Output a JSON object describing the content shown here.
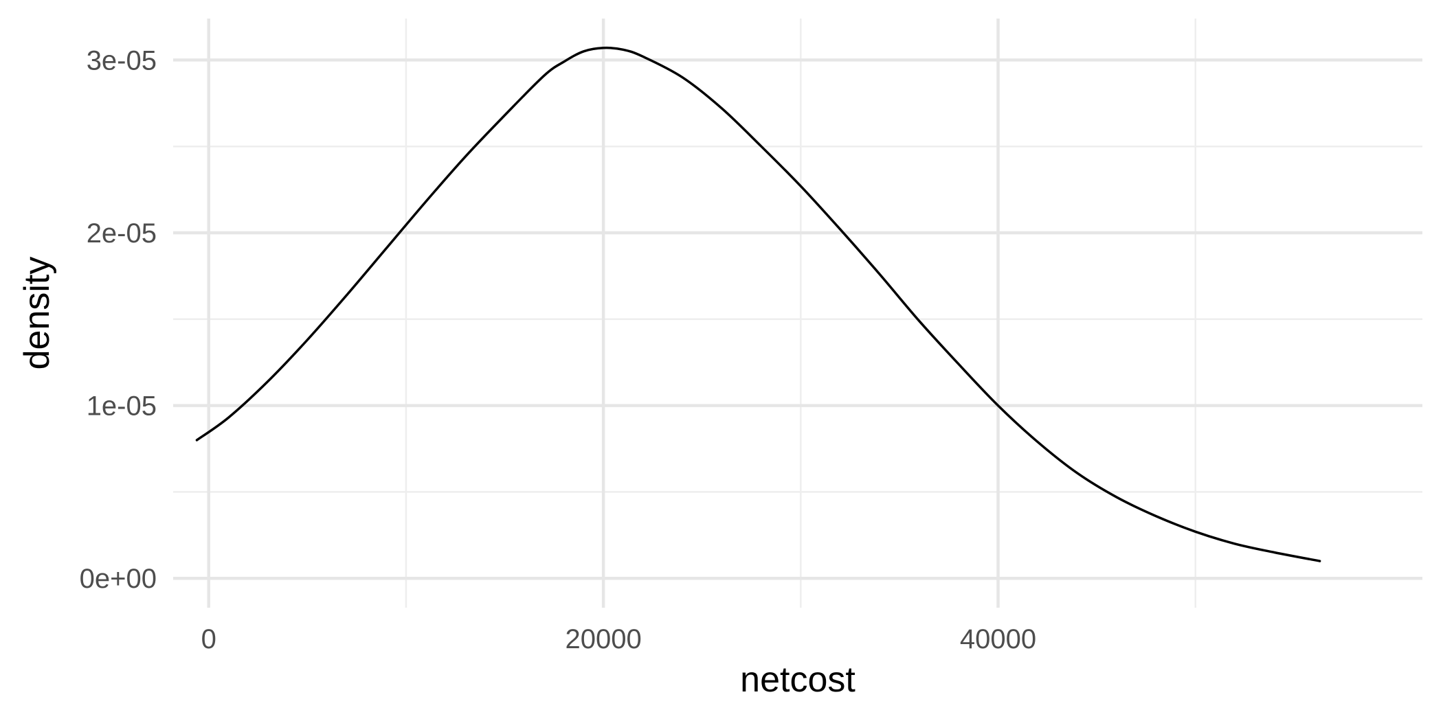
{
  "chart_data": {
    "type": "line",
    "title": "",
    "xlabel": "netcost",
    "ylabel": "density",
    "xlim": [
      -1800,
      61500
    ],
    "ylim": [
      -1.7e-06,
      3.24e-05
    ],
    "x_major_ticks": [
      0,
      20000,
      40000
    ],
    "x_tick_labels": [
      "0",
      "20000",
      "40000"
    ],
    "x_minor_ticks": [
      10000,
      30000,
      50000
    ],
    "y_major_ticks": [
      0,
      1e-05,
      2e-05,
      3e-05
    ],
    "y_tick_labels": [
      "0e+00",
      "1e-05",
      "2e-05",
      "3e-05"
    ],
    "y_minor_ticks": [
      5e-06,
      1.5e-05,
      2.5e-05
    ],
    "grid": true,
    "legend": "none",
    "line_color": "#000000",
    "series": [
      {
        "x": [
          -600,
          1000,
          3000,
          5000,
          7000,
          9000,
          11000,
          13000,
          15000,
          17000,
          18000,
          19000,
          20000,
          21000,
          22000,
          24000,
          26000,
          28000,
          30000,
          32000,
          34000,
          36000,
          38000,
          40000,
          42000,
          44000,
          46000,
          48000,
          50000,
          52000,
          54000,
          56300
        ],
        "y": [
          8e-06,
          9.3e-06,
          1.14e-05,
          1.38e-05,
          1.64e-05,
          1.91e-05,
          2.18e-05,
          2.44e-05,
          2.68e-05,
          2.91e-05,
          2.99e-05,
          3.05e-05,
          3.07e-05,
          3.06e-05,
          3.02e-05,
          2.9e-05,
          2.72e-05,
          2.5e-05,
          2.27e-05,
          2.02e-05,
          1.76e-05,
          1.49e-05,
          1.24e-05,
          1e-05,
          7.9e-06,
          6.1e-06,
          4.7e-06,
          3.6e-06,
          2.7e-06,
          2e-06,
          1.5e-06,
          1e-06
        ]
      }
    ]
  }
}
